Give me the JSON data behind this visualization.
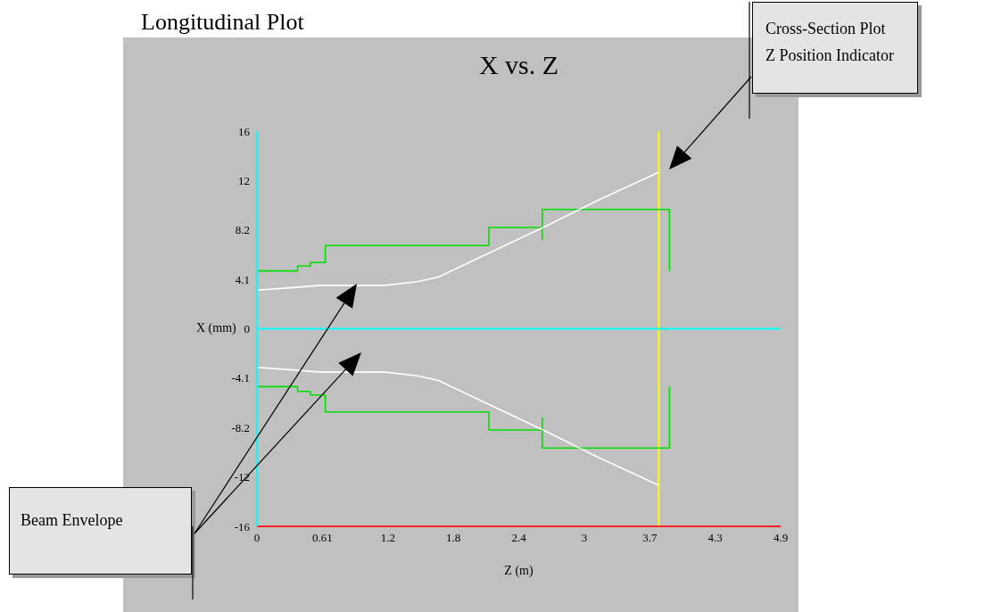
{
  "chart_data": {
    "type": "line",
    "title": "Longitudinal Plot",
    "subtitle": "X vs. Z",
    "xlabel": "Z (m)",
    "ylabel": "X (mm)",
    "annotations": [
      "Cross-Section Plot\nZ Position Indicator",
      "Beam Envelope"
    ],
    "xlim": [
      0,
      4.9
    ],
    "xticks": [
      0,
      {
        "value": 0.6125,
        "label": "0.61"
      },
      {
        "value": 1.225,
        "label": "1.2"
      },
      {
        "value": 1.8375,
        "label": "1.8"
      },
      {
        "value": 2.45,
        "label": "2.4"
      },
      {
        "value": 3.0625,
        "label": "3"
      },
      {
        "value": 3.675,
        "label": "3.7"
      },
      {
        "value": 4.2875,
        "label": "4.3"
      },
      4.9
    ],
    "ylim": [
      -16.4,
      16.4
    ],
    "yticks": [
      {
        "value": -16.4,
        "label": "-16"
      },
      {
        "value": -12.3,
        "label": "-12"
      },
      -8.2,
      -4.1,
      0,
      4.1,
      8.2,
      {
        "value": 12.3,
        "label": "12"
      },
      {
        "value": 16.4,
        "label": "16"
      }
    ],
    "grid": false,
    "marker": "none",
    "line_style": "solid",
    "ref_lines": [
      {
        "axis": "x",
        "value": 3.76,
        "color": "#ffff00"
      },
      {
        "axis": "y",
        "value": 0,
        "color": "#00ffff"
      }
    ],
    "series": [
      {
        "color": "#00e000",
        "x": [
          0,
          0.38,
          0.38,
          0.5,
          0.5,
          0.64,
          0.64,
          2.17,
          2.17,
          2.67,
          2.67,
          2.67,
          3.86,
          3.86
        ],
        "values": [
          4.8,
          4.8,
          5.2,
          5.2,
          5.5,
          5.5,
          6.9,
          6.9,
          8.4,
          8.4,
          7.4,
          9.9,
          9.9,
          4.8
        ]
      },
      {
        "color": "#00e000",
        "x": [
          0,
          0.38,
          0.38,
          0.5,
          0.5,
          0.64,
          0.64,
          2.17,
          2.17,
          2.67,
          2.67,
          2.67,
          3.86,
          3.86
        ],
        "values": [
          -4.8,
          -4.8,
          -5.2,
          -5.2,
          -5.5,
          -5.5,
          -6.9,
          -6.9,
          -8.4,
          -8.4,
          -7.4,
          -9.9,
          -9.9,
          -4.8
        ]
      },
      {
        "color": "#ffffff",
        "x": [
          0,
          0.3,
          0.6,
          1.2,
          1.5,
          1.7,
          2.2,
          2.7,
          3.2,
          3.76
        ],
        "values": [
          3.2,
          3.4,
          3.6,
          3.6,
          3.9,
          4.3,
          6.4,
          8.5,
          10.7,
          13.0
        ]
      },
      {
        "color": "#ffffff",
        "x": [
          0,
          0.3,
          0.6,
          1.2,
          1.5,
          1.7,
          2.2,
          2.7,
          3.2,
          3.76
        ],
        "values": [
          -3.2,
          -3.4,
          -3.6,
          -3.6,
          -3.9,
          -4.3,
          -6.4,
          -8.5,
          -10.7,
          -13.0
        ]
      }
    ]
  }
}
